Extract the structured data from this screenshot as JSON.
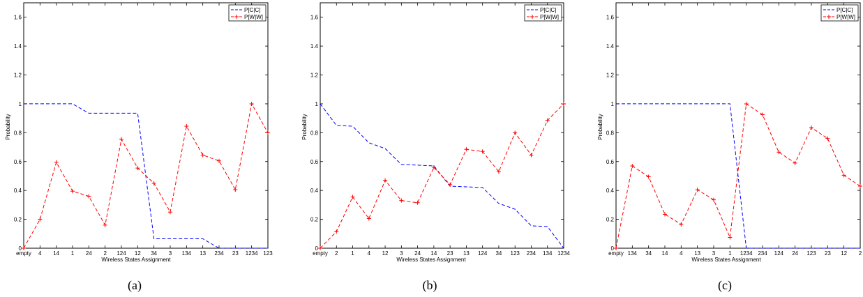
{
  "chart_data": [
    {
      "type": "line",
      "caption": "(a)",
      "xlabel": "Wireless States Assignment",
      "ylabel": "Probability",
      "ylim": [
        0,
        1.7
      ],
      "yticks": [
        "0",
        "0.2",
        "0.4",
        "0.6",
        "0.8",
        "1",
        "1.2",
        "1.4",
        "1.6"
      ],
      "categories": [
        "empty",
        "4",
        "14",
        "1",
        "24",
        "2",
        "124",
        "12",
        "34",
        "3",
        "134",
        "13",
        "234",
        "23",
        "1234",
        "123"
      ],
      "legend_position": "top-right",
      "series": [
        {
          "name": "P[C|C]",
          "color": "#0000ff",
          "marker": "none",
          "values": [
            1,
            1,
            1,
            1,
            0.935,
            0.935,
            0.935,
            0.935,
            0.065,
            0.065,
            0.065,
            0.065,
            0,
            0,
            0,
            0
          ]
        },
        {
          "name": "P[W|W]",
          "color": "#ff0000",
          "marker": "plus",
          "values": [
            0,
            0.2,
            0.595,
            0.395,
            0.36,
            0.16,
            0.755,
            0.555,
            0.45,
            0.25,
            0.845,
            0.645,
            0.605,
            0.405,
            1,
            0.8
          ]
        }
      ]
    },
    {
      "type": "line",
      "caption": "(b)",
      "xlabel": "Wireless States Assignment",
      "ylabel": "Probability",
      "ylim": [
        0,
        1.7
      ],
      "yticks": [
        "0",
        "0.2",
        "0.4",
        "0.6",
        "0.8",
        "1",
        "1.2",
        "1.4",
        "1.6"
      ],
      "categories": [
        "empty",
        "2",
        "1",
        "4",
        "12",
        "3",
        "24",
        "14",
        "23",
        "13",
        "124",
        "34",
        "123",
        "234",
        "134",
        "1234"
      ],
      "legend_position": "top-right",
      "series": [
        {
          "name": "P[C|C]",
          "color": "#0000ff",
          "marker": "none",
          "values": [
            1,
            0.85,
            0.845,
            0.73,
            0.69,
            0.58,
            0.575,
            0.57,
            0.43,
            0.425,
            0.42,
            0.31,
            0.27,
            0.155,
            0.15,
            0
          ]
        },
        {
          "name": "P[W|W]",
          "color": "#ff0000",
          "marker": "plus",
          "values": [
            0,
            0.115,
            0.355,
            0.205,
            0.47,
            0.33,
            0.315,
            0.56,
            0.44,
            0.685,
            0.67,
            0.53,
            0.8,
            0.645,
            0.885,
            1
          ]
        }
      ]
    },
    {
      "type": "line",
      "caption": "(c)",
      "xlabel": "Wireless States Assignment",
      "ylabel": "Probability",
      "ylim": [
        0,
        1.7
      ],
      "yticks": [
        "0",
        "0.2",
        "0.4",
        "0.6",
        "0.8",
        "1",
        "1.2",
        "1.4",
        "1.6"
      ],
      "categories": [
        "empty",
        "134",
        "34",
        "14",
        "4",
        "13",
        "3",
        "1",
        "1234",
        "234",
        "124",
        "24",
        "123",
        "23",
        "12",
        "2"
      ],
      "legend_position": "top-right",
      "series": [
        {
          "name": "P[C|C]",
          "color": "#0000ff",
          "marker": "none",
          "values": [
            1,
            1,
            1,
            1,
            1,
            1,
            1,
            1,
            0,
            0,
            0,
            0,
            0,
            0,
            0,
            0
          ]
        },
        {
          "name": "P[W|W]",
          "color": "#ff0000",
          "marker": "plus",
          "values": [
            0,
            0.57,
            0.495,
            0.235,
            0.165,
            0.405,
            0.335,
            0.075,
            1,
            0.925,
            0.665,
            0.59,
            0.835,
            0.76,
            0.505,
            0.43
          ]
        }
      ]
    }
  ]
}
